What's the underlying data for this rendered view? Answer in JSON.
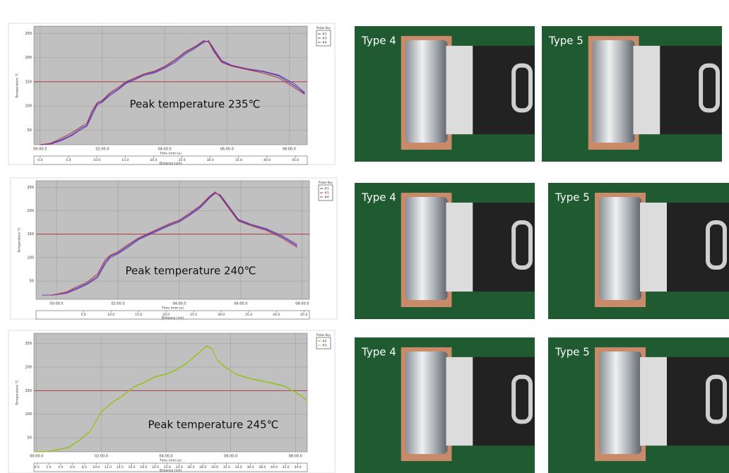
{
  "chart_data": [
    {
      "type": "line",
      "annotation": "Peak temperature 235℃",
      "y_label": "Temperature °C",
      "x_label": "Time (mm:ss)",
      "x2_label": "Distance (cm)",
      "legend_title": "Probe Key",
      "reference_line": 150,
      "reference_color": "#a03030",
      "grid": true,
      "x": [
        0,
        20,
        40,
        60,
        80,
        90,
        100,
        110,
        120,
        135,
        150,
        165,
        180,
        200,
        220,
        240,
        260,
        280,
        300,
        315,
        325,
        335,
        350,
        370,
        400,
        430,
        460,
        490,
        510
      ],
      "series": [
        {
          "name": "#1",
          "color": "#3040c0",
          "values": [
            20,
            22,
            30,
            40,
            55,
            60,
            85,
            105,
            110,
            125,
            135,
            148,
            155,
            165,
            170,
            180,
            193,
            210,
            222,
            233,
            234,
            215,
            192,
            183,
            176,
            171,
            162,
            142,
            126
          ]
        },
        {
          "name": "#3",
          "color": "#c03040",
          "values": [
            20,
            23,
            33,
            44,
            58,
            64,
            90,
            107,
            112,
            128,
            138,
            150,
            157,
            166,
            172,
            182,
            196,
            212,
            224,
            235,
            232,
            212,
            190,
            182,
            175,
            168,
            158,
            138,
            124
          ]
        },
        {
          "name": "#4",
          "color": "#8040a0",
          "values": [
            20,
            21,
            28,
            38,
            52,
            58,
            80,
            102,
            108,
            122,
            133,
            146,
            153,
            163,
            168,
            178,
            190,
            207,
            220,
            231,
            235,
            218,
            194,
            184,
            177,
            172,
            164,
            146,
            128
          ]
        }
      ],
      "xlim": [
        -12,
        515
      ],
      "xticks": [
        {
          "value": 0,
          "label": "00:00.0"
        },
        {
          "value": 120,
          "label": "02:00.0"
        },
        {
          "value": 240,
          "label": "04:00.0"
        },
        {
          "value": 360,
          "label": "06:00.0"
        },
        {
          "value": 480,
          "label": "08:00.0"
        }
      ],
      "ylim": [
        20,
        265
      ],
      "yticks": [
        50,
        100,
        150,
        200,
        250
      ],
      "x2lim": [
        -1.1,
        47.1
      ],
      "x2ticks": [
        {
          "value": 0,
          "label": "0.0"
        },
        {
          "value": 5,
          "label": "5.0"
        },
        {
          "value": 10,
          "label": "10.0"
        },
        {
          "value": 15,
          "label": "15.0"
        },
        {
          "value": 20,
          "label": "20.0"
        },
        {
          "value": 25,
          "label": "25.0"
        },
        {
          "value": 30,
          "label": "30.0"
        },
        {
          "value": 35,
          "label": "35.0"
        },
        {
          "value": 40,
          "label": "40.0"
        },
        {
          "value": 45,
          "label": "45.0"
        }
      ]
    },
    {
      "type": "line",
      "annotation": "Peak temperature 240℃",
      "y_label": "Temperature °C",
      "x_label": "Time (mm:ss)",
      "x2_label": "Distance (cm)",
      "legend_title": "Probe Key",
      "reference_line": 150,
      "reference_color": "#a03030",
      "grid": true,
      "x": [
        -28,
        -10,
        0,
        20,
        40,
        60,
        80,
        95,
        105,
        120,
        140,
        160,
        180,
        200,
        220,
        240,
        260,
        280,
        300,
        310,
        320,
        335,
        355,
        380,
        410,
        440,
        470
      ],
      "series": [
        {
          "name": "#1",
          "color": "#3040c0",
          "values": [
            20,
            20,
            21,
            25,
            35,
            45,
            60,
            90,
            103,
            110,
            125,
            140,
            150,
            160,
            170,
            178,
            192,
            208,
            230,
            238,
            232,
            210,
            180,
            170,
            160,
            145,
            125
          ]
        },
        {
          "name": "#3",
          "color": "#c03040",
          "values": [
            20,
            20,
            22,
            27,
            38,
            48,
            65,
            95,
            105,
            113,
            128,
            142,
            152,
            162,
            172,
            180,
            195,
            210,
            232,
            240,
            230,
            207,
            178,
            168,
            158,
            142,
            122
          ]
        },
        {
          "name": "#4",
          "color": "#8040a0",
          "values": [
            20,
            20,
            21,
            24,
            33,
            43,
            57,
            86,
            100,
            108,
            122,
            138,
            148,
            158,
            168,
            176,
            190,
            205,
            228,
            237,
            234,
            212,
            182,
            171,
            162,
            147,
            128
          ]
        }
      ],
      "xlim": [
        -40,
        494
      ],
      "xticks": [
        {
          "value": 0,
          "label": "00:00.0"
        },
        {
          "value": 120,
          "label": "02:00.0"
        },
        {
          "value": 240,
          "label": "04:00.0"
        },
        {
          "value": 360,
          "label": "06:00.0"
        },
        {
          "value": 480,
          "label": "08:00.0"
        }
      ],
      "ylim": [
        11,
        264
      ],
      "yticks": [
        50,
        100,
        150,
        200,
        250
      ],
      "x2lim": [
        -3.6,
        46
      ],
      "x2ticks": [
        {
          "value": 5,
          "label": "5.0"
        },
        {
          "value": 10,
          "label": "10.0"
        },
        {
          "value": 15,
          "label": "15.0"
        },
        {
          "value": 20,
          "label": "20.0"
        },
        {
          "value": 25,
          "label": "25.0"
        },
        {
          "value": 30,
          "label": "30.0"
        },
        {
          "value": 35,
          "label": "35.0"
        },
        {
          "value": 40,
          "label": "40.0"
        },
        {
          "value": 45,
          "label": "45.0"
        }
      ]
    },
    {
      "type": "line",
      "annotation": "Peak temperature 245℃",
      "y_label": "Temperature °C",
      "x_label": "Time (mm:ss)",
      "x2_label": "Distance (cm)",
      "legend_title": "Probe Key",
      "reference_line": 150,
      "reference_color": "#a03030",
      "grid": true,
      "x": [
        -5,
        20,
        40,
        60,
        70,
        80,
        90,
        100,
        110,
        120,
        140,
        160,
        180,
        200,
        220,
        240,
        260,
        280,
        300,
        315,
        325,
        335,
        350,
        370,
        400,
        430,
        460,
        490,
        500
      ],
      "series": [
        {
          "name": "#2",
          "color": "#70c020",
          "values": [
            20,
            21,
            25,
            30,
            38,
            45,
            55,
            65,
            85,
            105,
            125,
            140,
            158,
            168,
            180,
            185,
            195,
            210,
            230,
            245,
            240,
            215,
            200,
            185,
            175,
            168,
            160,
            140,
            130
          ]
        },
        {
          "name": "#3",
          "color": "#b0c020",
          "values": [
            20,
            21,
            24,
            29,
            37,
            44,
            54,
            64,
            84,
            104,
            124,
            139,
            157,
            167,
            179,
            184,
            194,
            209,
            229,
            244,
            239,
            214,
            199,
            184,
            174,
            167,
            159,
            139,
            129
          ]
        }
      ],
      "xlim": [
        -5,
        502
      ],
      "xticks": [
        {
          "value": 0,
          "label": "00:00.0"
        },
        {
          "value": 120,
          "label": "02:00.0"
        },
        {
          "value": 240,
          "label": "04:00.0"
        },
        {
          "value": 360,
          "label": "06:00.0"
        },
        {
          "value": 480,
          "label": "08:00.0"
        }
      ],
      "ylim": [
        20,
        272
      ],
      "yticks": [
        50,
        100,
        150,
        200,
        250
      ],
      "x2lim": [
        -0.5,
        45.6
      ],
      "x2ticks": [
        {
          "value": 0,
          "label": "0.0"
        },
        {
          "value": 2,
          "label": "2.0"
        },
        {
          "value": 4,
          "label": "4.0"
        },
        {
          "value": 6,
          "label": "6.0"
        },
        {
          "value": 8,
          "label": "8.0"
        },
        {
          "value": 10,
          "label": "10.0"
        },
        {
          "value": 12,
          "label": "12.0"
        },
        {
          "value": 14,
          "label": "14.0"
        },
        {
          "value": 16,
          "label": "16.0"
        },
        {
          "value": 18,
          "label": "18.0"
        },
        {
          "value": 20,
          "label": "20.0"
        },
        {
          "value": 22,
          "label": "22.0"
        },
        {
          "value": 24,
          "label": "24.0"
        },
        {
          "value": 26,
          "label": "26.0"
        },
        {
          "value": 28,
          "label": "28.0"
        },
        {
          "value": 30,
          "label": "30.0"
        },
        {
          "value": 32,
          "label": "32.0"
        },
        {
          "value": 34,
          "label": "34.0"
        },
        {
          "value": 36,
          "label": "36.0"
        },
        {
          "value": 38,
          "label": "38.0"
        },
        {
          "value": 40,
          "label": "40.0"
        },
        {
          "value": 42,
          "label": "42.0"
        },
        {
          "value": 44,
          "label": "44.0"
        }
      ]
    }
  ],
  "photos": [
    {
      "label": "Type 4"
    },
    {
      "label": "Type 5"
    },
    {
      "label": "Type 4"
    },
    {
      "label": "Type 5"
    },
    {
      "label": "Type 4"
    },
    {
      "label": "Type 5"
    }
  ]
}
